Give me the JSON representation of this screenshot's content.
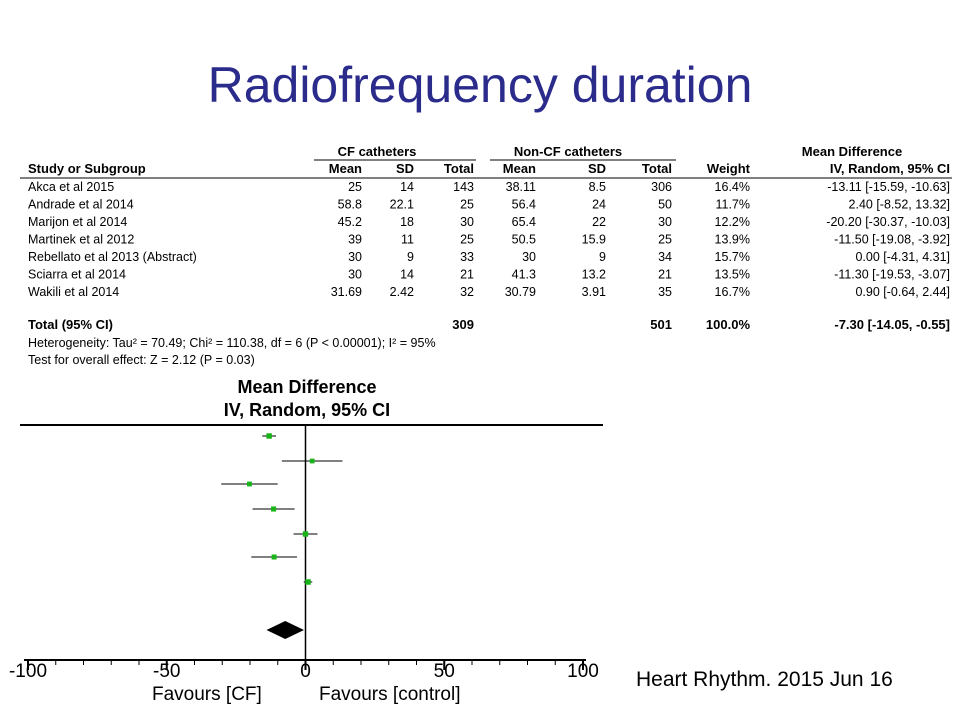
{
  "slide": {
    "title": "Radiofrequency duration",
    "citation": "Heart Rhythm. 2015 Jun 16"
  },
  "table": {
    "group_headers": [
      "CF catheters",
      "Non-CF catheters",
      "Mean Difference"
    ],
    "column_headers": [
      "Study or Subgroup",
      "Mean",
      "SD",
      "Total",
      "Mean",
      "SD",
      "Total",
      "Weight",
      "IV, Random, 95% CI"
    ],
    "rows": [
      {
        "study": "Akca et al 2015",
        "cf_mean": "25",
        "cf_sd": "14",
        "cf_total": "143",
        "ncf_mean": "38.11",
        "ncf_sd": "8.5",
        "ncf_total": "306",
        "weight": "16.4%",
        "ci": "-13.11 [-15.59, -10.63]"
      },
      {
        "study": "Andrade et al 2014",
        "cf_mean": "58.8",
        "cf_sd": "22.1",
        "cf_total": "25",
        "ncf_mean": "56.4",
        "ncf_sd": "24",
        "ncf_total": "50",
        "weight": "11.7%",
        "ci": "2.40 [-8.52, 13.32]"
      },
      {
        "study": "Marijon et al 2014",
        "cf_mean": "45.2",
        "cf_sd": "18",
        "cf_total": "30",
        "ncf_mean": "65.4",
        "ncf_sd": "22",
        "ncf_total": "30",
        "weight": "12.2%",
        "ci": "-20.20 [-30.37, -10.03]"
      },
      {
        "study": "Martinek et al 2012",
        "cf_mean": "39",
        "cf_sd": "11",
        "cf_total": "25",
        "ncf_mean": "50.5",
        "ncf_sd": "15.9",
        "ncf_total": "25",
        "weight": "13.9%",
        "ci": "-11.50 [-19.08, -3.92]"
      },
      {
        "study": "Rebellato et al 2013 (Abstract)",
        "cf_mean": "30",
        "cf_sd": "9",
        "cf_total": "33",
        "ncf_mean": "30",
        "ncf_sd": "9",
        "ncf_total": "34",
        "weight": "15.7%",
        "ci": "0.00 [-4.31, 4.31]"
      },
      {
        "study": "Sciarra et al 2014",
        "cf_mean": "30",
        "cf_sd": "14",
        "cf_total": "21",
        "ncf_mean": "41.3",
        "ncf_sd": "13.2",
        "ncf_total": "21",
        "weight": "13.5%",
        "ci": "-11.30 [-19.53, -3.07]"
      },
      {
        "study": "Wakili et al 2014",
        "cf_mean": "31.69",
        "cf_sd": "2.42",
        "cf_total": "32",
        "ncf_mean": "30.79",
        "ncf_sd": "3.91",
        "ncf_total": "35",
        "weight": "16.7%",
        "ci": "0.90 [-0.64, 2.44]"
      }
    ],
    "total": {
      "label": "Total (95% CI)",
      "cf_total": "309",
      "ncf_total": "501",
      "weight": "100.0%",
      "ci": "-7.30 [-14.05, -0.55]"
    },
    "heterogeneity": "Heterogeneity: Tau² = 70.49; Chi² = 110.38, df = 6 (P < 0.00001); I² = 95%",
    "overall_effect": "Test for overall effect: Z = 2.12 (P = 0.03)"
  },
  "chart_data": {
    "type": "forest",
    "title": "Mean Difference",
    "subtitle": "IV, Random, 95% CI",
    "xlim": [
      -100,
      100
    ],
    "xticks": [
      "-100",
      "-50",
      "0",
      "50",
      "100"
    ],
    "xlabel_left": "Favours [CF]",
    "xlabel_right": "Favours [control]",
    "marker_color": "#19b419",
    "points": [
      {
        "study": "Akca et al 2015",
        "md": -13.11,
        "lo": -15.59,
        "hi": -10.63,
        "weight": 16.4
      },
      {
        "study": "Andrade et al 2014",
        "md": 2.4,
        "lo": -8.52,
        "hi": 13.32,
        "weight": 11.7
      },
      {
        "study": "Marijon et al 2014",
        "md": -20.2,
        "lo": -30.37,
        "hi": -10.03,
        "weight": 12.2
      },
      {
        "study": "Martinek et al 2012",
        "md": -11.5,
        "lo": -19.08,
        "hi": -3.92,
        "weight": 13.9
      },
      {
        "study": "Rebellato et al 2013 (Abstract)",
        "md": 0.0,
        "lo": -4.31,
        "hi": 4.31,
        "weight": 15.7
      },
      {
        "study": "Sciarra et al 2014",
        "md": -11.3,
        "lo": -19.53,
        "hi": -3.07,
        "weight": 13.5
      },
      {
        "study": "Wakili et al 2014",
        "md": 0.9,
        "lo": -0.64,
        "hi": 2.44,
        "weight": 16.7
      }
    ],
    "total": {
      "md": -7.3,
      "lo": -14.05,
      "hi": -0.55
    }
  }
}
